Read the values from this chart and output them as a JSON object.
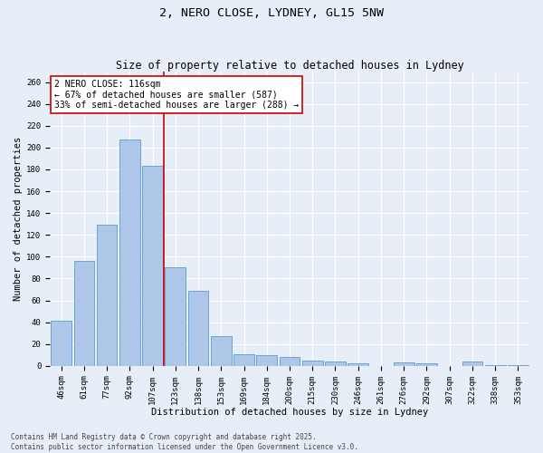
{
  "title_line1": "2, NERO CLOSE, LYDNEY, GL15 5NW",
  "title_line2": "Size of property relative to detached houses in Lydney",
  "xlabel": "Distribution of detached houses by size in Lydney",
  "ylabel": "Number of detached properties",
  "categories": [
    "46sqm",
    "61sqm",
    "77sqm",
    "92sqm",
    "107sqm",
    "123sqm",
    "138sqm",
    "153sqm",
    "169sqm",
    "184sqm",
    "200sqm",
    "215sqm",
    "230sqm",
    "246sqm",
    "261sqm",
    "276sqm",
    "292sqm",
    "307sqm",
    "322sqm",
    "338sqm",
    "353sqm"
  ],
  "values": [
    41,
    96,
    129,
    207,
    183,
    90,
    69,
    27,
    11,
    10,
    8,
    5,
    4,
    2,
    0,
    3,
    2,
    0,
    4,
    1,
    1
  ],
  "bar_color": "#aec6e8",
  "bar_edge_color": "#5b9bd5",
  "vline_x": 4.5,
  "vline_color": "#cc0000",
  "annotation_text": "2 NERO CLOSE: 116sqm\n← 67% of detached houses are smaller (587)\n33% of semi-detached houses are larger (288) →",
  "annotation_box_color": "#ffffff",
  "annotation_box_edge_color": "#cc0000",
  "ylim": [
    0,
    270
  ],
  "yticks": [
    0,
    20,
    40,
    60,
    80,
    100,
    120,
    140,
    160,
    180,
    200,
    220,
    240,
    260
  ],
  "background_color": "#e8eef7",
  "grid_color": "#ffffff",
  "footer_text": "Contains HM Land Registry data © Crown copyright and database right 2025.\nContains public sector information licensed under the Open Government Licence v3.0.",
  "title_fontsize": 9.5,
  "subtitle_fontsize": 8.5,
  "axis_label_fontsize": 7.5,
  "tick_fontsize": 6.5,
  "annotation_fontsize": 7.0,
  "footer_fontsize": 5.5
}
